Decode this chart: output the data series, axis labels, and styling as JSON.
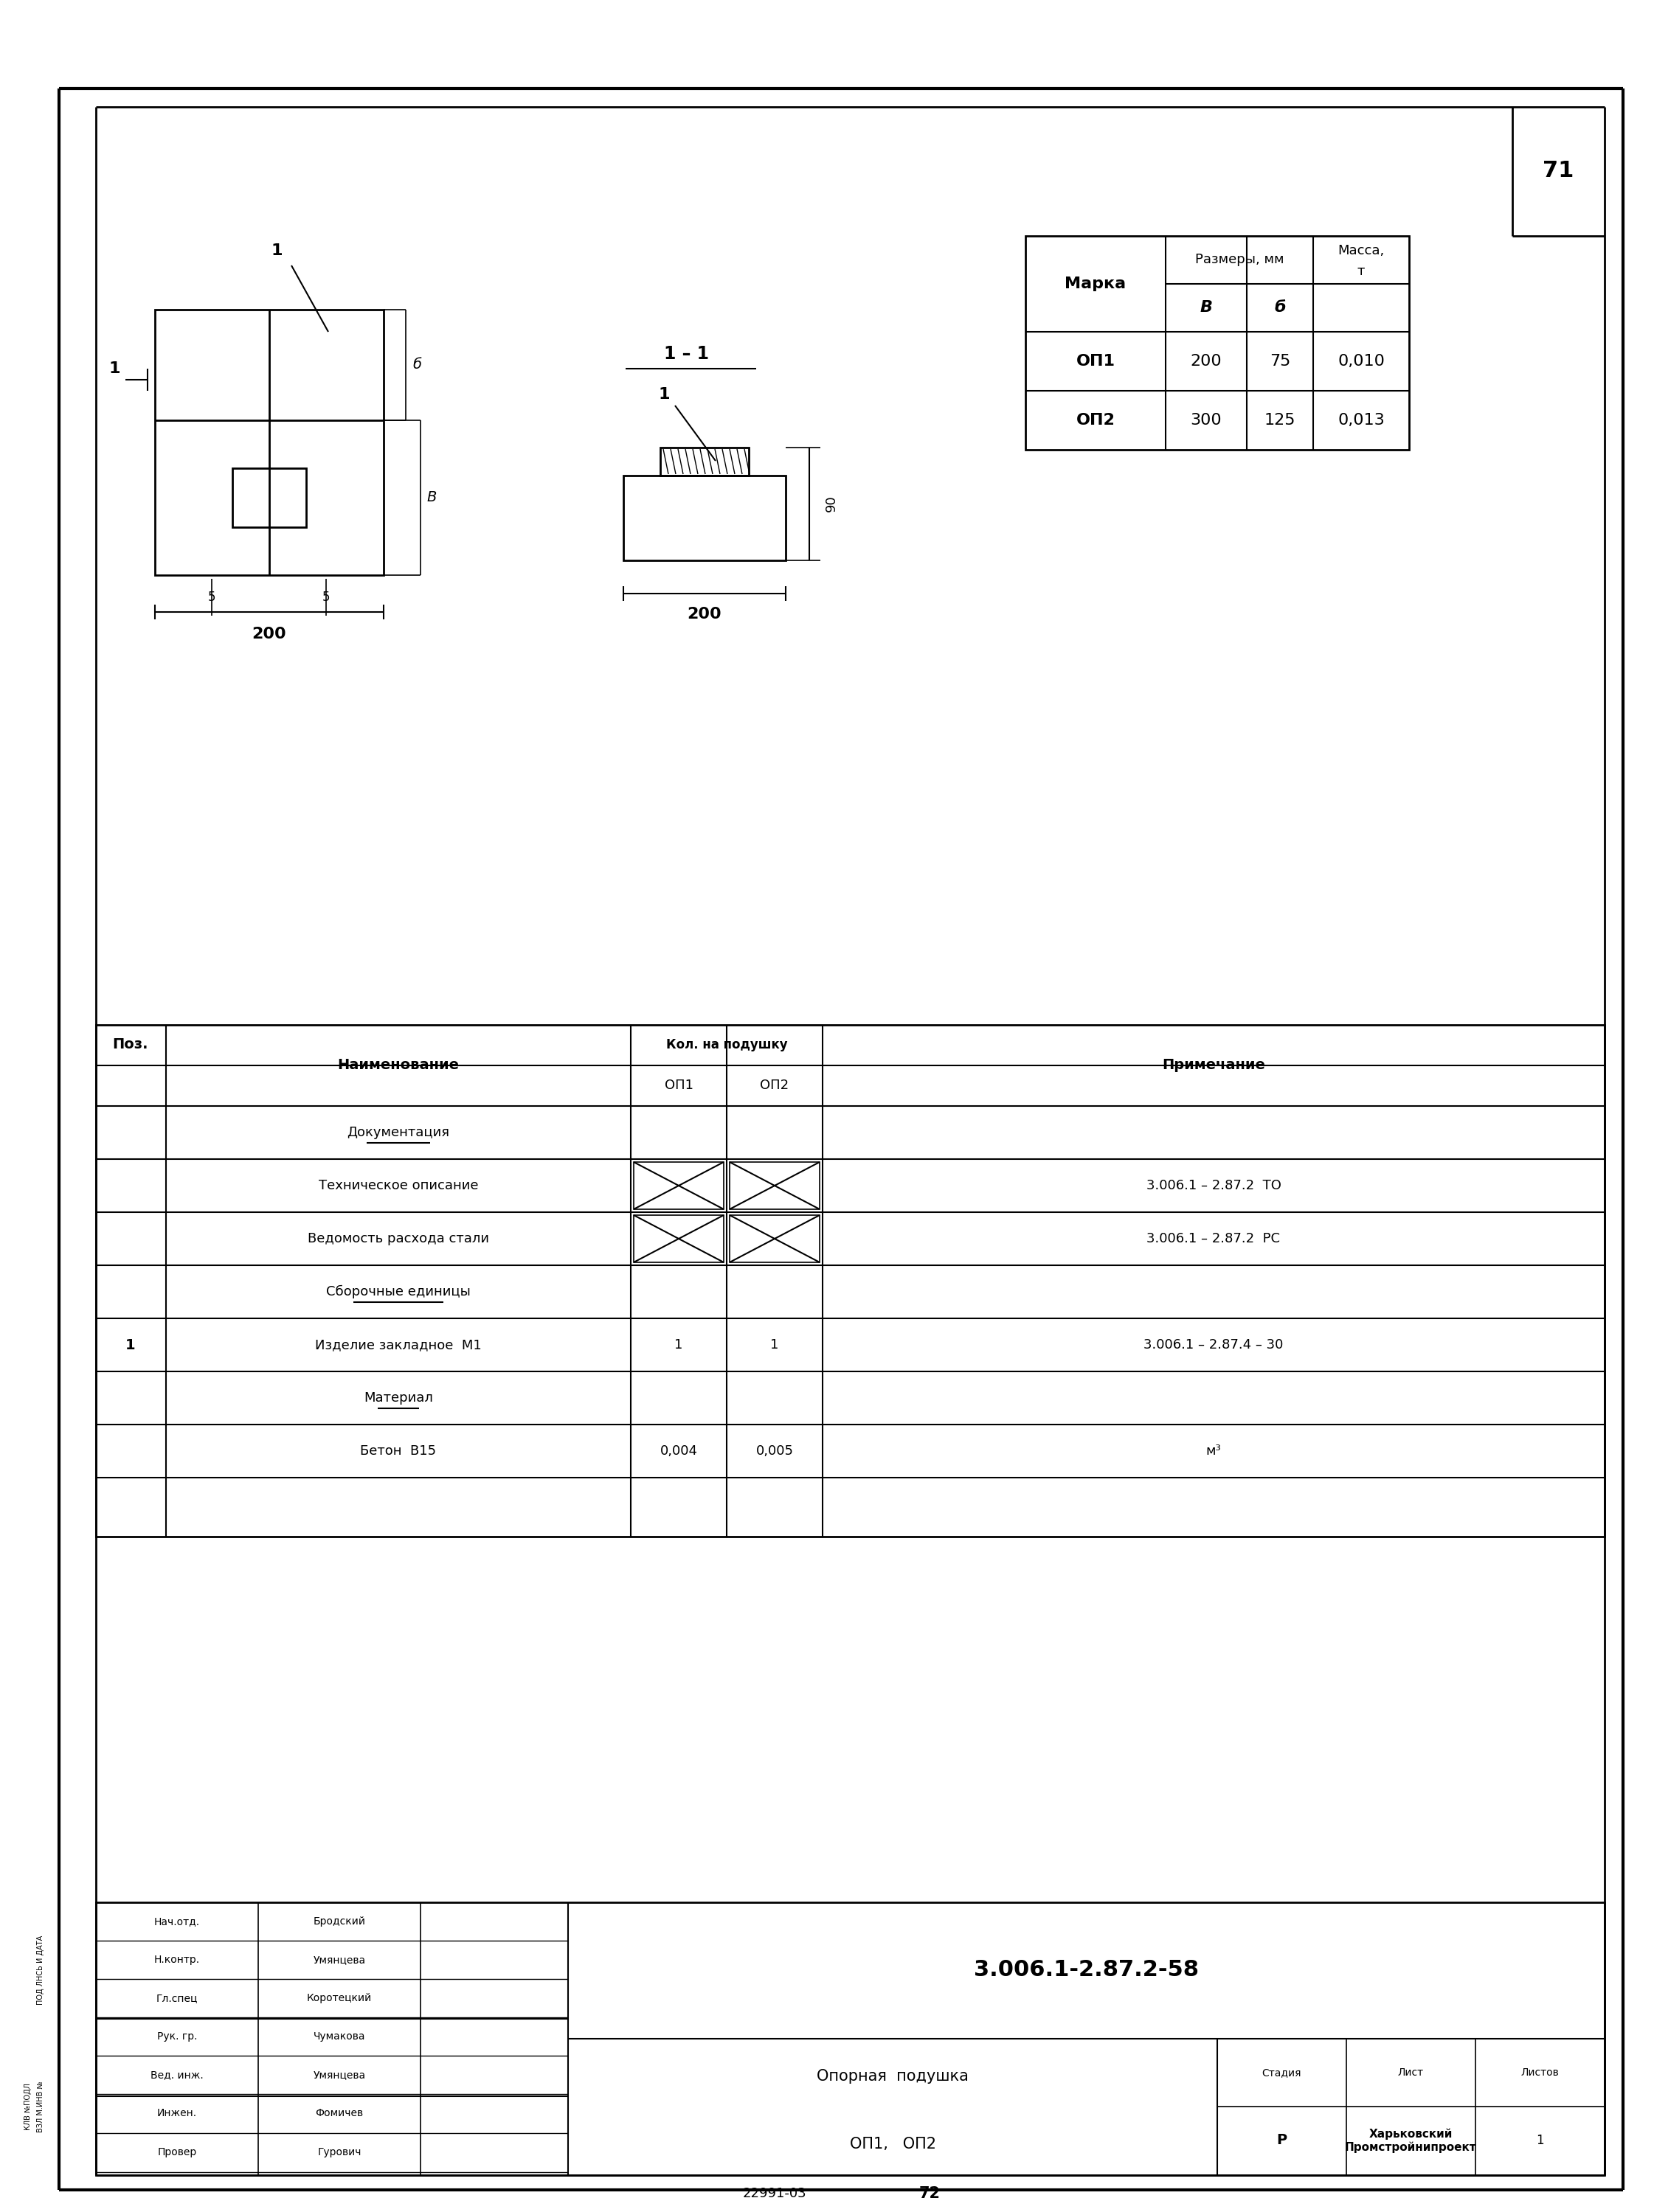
{
  "page_num": "71",
  "doc_num": "72",
  "stamp_num": "22991-03",
  "doc_code": "3.006.1-2.87.2-58",
  "title_line1": "Опорная  подушка",
  "title_line2": "ОП1,   ОП2",
  "stage": "Р",
  "sheet": "",
  "sheets": "1",
  "table_data": [
    [
      "ОП1",
      "200",
      "75",
      "0,010"
    ],
    [
      "ОП2",
      "300",
      "125",
      "0,013"
    ]
  ],
  "spec_rows": [
    {
      "pos": "",
      "name": "Документация",
      "op1": "",
      "op2": "",
      "note": "",
      "underline": true
    },
    {
      "pos": "",
      "name": "Техническое описание",
      "op1": "X",
      "op2": "X",
      "note": "3.006.1 – 2.87.2  ТО",
      "underline": false
    },
    {
      "pos": "",
      "name": "Ведомость расхода стали",
      "op1": "X",
      "op2": "X",
      "note": "3.006.1 – 2.87.2  РС",
      "underline": false
    },
    {
      "pos": "",
      "name": "Сборочные единицы",
      "op1": "",
      "op2": "",
      "note": "",
      "underline": true
    },
    {
      "pos": "1",
      "name": "Изделие закладное  М1",
      "op1": "1",
      "op2": "1",
      "note": "3.006.1 – 2.87.4 – 30",
      "underline": false
    },
    {
      "pos": "",
      "name": "Материал",
      "op1": "",
      "op2": "",
      "note": "",
      "underline": true
    },
    {
      "pos": "",
      "name": "Бетон  В15",
      "op1": "0,004",
      "op2": "0,005",
      "note": "м³",
      "underline": false
    }
  ],
  "stamp_rows": [
    {
      "role": "Нач.отд.",
      "name": "Бродский"
    },
    {
      "role": "Н.контр.",
      "name": "Умянцева"
    },
    {
      "role": "Гл.спец",
      "name": "Коротецкий"
    },
    {
      "role": "Рук. гр.",
      "name": "Чумакова"
    },
    {
      "role": "Вед. инж.",
      "name": "Умянцева"
    },
    {
      "role": "Инжен.",
      "name": "Фомичев"
    },
    {
      "role": "Провер",
      "name": "Гурович"
    }
  ],
  "bg_color": "#ffffff",
  "line_color": "#000000"
}
